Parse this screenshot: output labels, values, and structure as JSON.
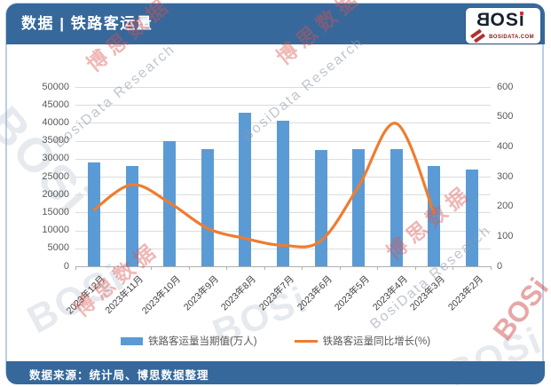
{
  "header": {
    "title": "数据 | 铁路客运量"
  },
  "logo": {
    "name": "BOSi",
    "site": "BOSIDATA.COM"
  },
  "footer": {
    "source": "数据来源：统计局、博思数据整理"
  },
  "watermarks": {
    "brand_cn": "博思数据",
    "brand_en": "BosiData Research",
    "brand_logo": "BOSi"
  },
  "colors": {
    "banner": "#36689b",
    "bar": "#5B9BD5",
    "line": "#ED7D31",
    "grid": "#dcdcdc",
    "axis_text": "#595959"
  },
  "chart_data": {
    "type": "bar",
    "subtype": "combo bar+line, dual axis",
    "categories": [
      "2023年12月",
      "2023年11月",
      "2023年10月",
      "2023年9月",
      "2023年8月",
      "2023年7月",
      "2023年6月",
      "2023年5月",
      "2023年4月",
      "2023年3月",
      "2023年2月"
    ],
    "series": [
      {
        "name": "铁路客运量当期值(万人)",
        "type": "bar",
        "axis": "left",
        "color": "#5B9BD5",
        "values": [
          29000,
          27900,
          35000,
          32600,
          42700,
          40700,
          32400,
          32550,
          32600,
          27900,
          27000
        ]
      },
      {
        "name": "铁路客运量同比增长(%)",
        "type": "line",
        "axis": "right",
        "color": "#ED7D31",
        "values": [
          190,
          273,
          212,
          127,
          93,
          70,
          85,
          267,
          478,
          178,
          null
        ]
      }
    ],
    "left_axis": {
      "min": 0,
      "max": 50000,
      "step": 5000
    },
    "right_axis": {
      "min": 0,
      "max": 600,
      "step": 100
    },
    "grid": true,
    "legend_position": "bottom"
  }
}
